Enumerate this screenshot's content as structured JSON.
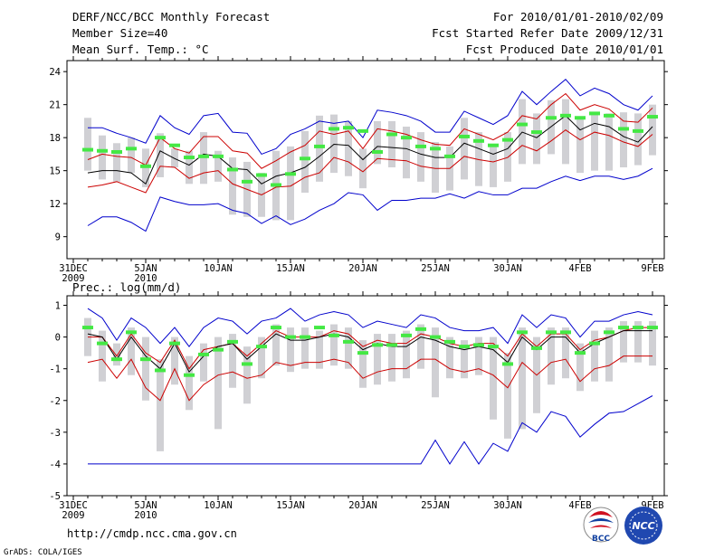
{
  "header": {
    "title": "DERF/NCC/BCC Monthly Forecast",
    "member_size": "Member Size=40",
    "variable": "Mean Surf. Temp.: °C",
    "period": "For 2010/01/01-2010/02/09",
    "started": "Fcst Started Refer Date 2009/12/31",
    "produced": "Fcst Produced Date 2010/01/01"
  },
  "footer": {
    "url": "http://cmdp.ncc.cma.gov.cn",
    "credit": "GrADS: COLA/IGES",
    "logo_bcc": "BCC",
    "logo_ncc": "NCC"
  },
  "colors": {
    "max_min": "#0000cc",
    "spread": "#cc0000",
    "mean": "#000000",
    "box": "#d0d0d4",
    "bar": "#44e844"
  },
  "x_ticks": [
    {
      "day": 0,
      "label": "31DEC",
      "sub": "2009"
    },
    {
      "day": 5,
      "label": "5JAN",
      "sub": "2010"
    },
    {
      "day": 10,
      "label": "10JAN",
      "sub": ""
    },
    {
      "day": 15,
      "label": "15JAN",
      "sub": ""
    },
    {
      "day": 20,
      "label": "20JAN",
      "sub": ""
    },
    {
      "day": 25,
      "label": "25JAN",
      "sub": ""
    },
    {
      "day": 30,
      "label": "30JAN",
      "sub": ""
    },
    {
      "day": 35,
      "label": "4FEB",
      "sub": ""
    },
    {
      "day": 40,
      "label": "9FEB",
      "sub": ""
    }
  ],
  "chart_data": [
    {
      "type": "line",
      "title": "Mean Surf. Temp.: °C",
      "ylim": [
        7,
        25
      ],
      "yticks": [
        9,
        12,
        15,
        18,
        21,
        24
      ],
      "x_days": [
        1,
        2,
        3,
        4,
        5,
        6,
        7,
        8,
        9,
        10,
        11,
        12,
        13,
        14,
        15,
        16,
        17,
        18,
        19,
        20,
        21,
        22,
        23,
        24,
        25,
        26,
        27,
        28,
        29,
        30,
        31,
        32,
        33,
        34,
        35,
        36,
        37,
        38,
        39,
        40
      ],
      "series": [
        {
          "name": "max",
          "values": [
            18.9,
            18.9,
            18.4,
            18.0,
            17.5,
            20.0,
            18.9,
            18.3,
            20.0,
            20.2,
            18.5,
            18.4,
            16.5,
            17.0,
            18.3,
            18.8,
            19.5,
            19.3,
            19.5,
            18.0,
            20.5,
            20.3,
            20.0,
            19.5,
            18.5,
            18.5,
            20.4,
            19.8,
            19.2,
            20.0,
            22.2,
            21.0,
            22.2,
            23.3,
            21.8,
            22.5,
            22.0,
            21.0,
            20.5,
            21.8
          ]
        },
        {
          "name": "upper",
          "values": [
            16.0,
            16.5,
            16.3,
            16.2,
            15.5,
            18.0,
            17.0,
            16.6,
            18.1,
            18.1,
            16.8,
            16.6,
            15.2,
            15.9,
            16.7,
            17.3,
            18.6,
            18.3,
            18.6,
            17.0,
            18.8,
            18.6,
            18.3,
            17.8,
            17.4,
            17.3,
            18.8,
            18.3,
            17.8,
            18.5,
            20.0,
            19.7,
            21.0,
            22.0,
            20.5,
            21.0,
            20.6,
            19.5,
            19.4,
            20.7
          ]
        },
        {
          "name": "mean",
          "values": [
            14.8,
            15.0,
            15.0,
            14.8,
            13.8,
            16.8,
            16.1,
            15.5,
            16.5,
            16.3,
            15.2,
            15.1,
            13.8,
            14.5,
            14.8,
            15.3,
            16.3,
            17.4,
            17.3,
            16.0,
            17.2,
            17.1,
            17.0,
            16.5,
            16.2,
            16.2,
            17.5,
            17.0,
            16.5,
            17.0,
            18.5,
            18.0,
            19.0,
            20.0,
            18.7,
            19.3,
            19.0,
            18.1,
            17.6,
            19.0
          ]
        },
        {
          "name": "lower",
          "values": [
            13.5,
            13.7,
            14.0,
            13.5,
            13.0,
            15.4,
            15.3,
            14.3,
            14.8,
            15.0,
            13.8,
            13.3,
            12.8,
            13.5,
            13.6,
            14.4,
            14.8,
            16.2,
            15.8,
            14.9,
            16.1,
            16.0,
            15.9,
            15.4,
            15.2,
            15.2,
            16.3,
            16.0,
            15.8,
            16.2,
            17.3,
            16.8,
            17.7,
            18.7,
            17.8,
            18.5,
            18.2,
            17.6,
            17.2,
            18.3
          ]
        },
        {
          "name": "min",
          "values": [
            10.0,
            10.8,
            10.8,
            10.3,
            9.5,
            12.6,
            12.2,
            11.9,
            11.9,
            12.0,
            11.4,
            11.1,
            10.2,
            10.9,
            10.1,
            10.6,
            11.4,
            12.0,
            13.0,
            12.8,
            11.4,
            12.3,
            12.3,
            12.5,
            12.5,
            12.9,
            12.5,
            13.1,
            12.8,
            12.8,
            13.4,
            13.4,
            14.0,
            14.5,
            14.1,
            14.5,
            14.5,
            14.2,
            14.5,
            15.2
          ]
        },
        {
          "name": "box_top",
          "values": [
            19.8,
            18.2,
            17.5,
            18.0,
            17.0,
            18.4,
            17.0,
            16.8,
            18.5,
            16.8,
            16.2,
            15.8,
            14.8,
            16.8,
            17.2,
            18.6,
            20.0,
            20.1,
            19.5,
            17.0,
            19.5,
            19.5,
            19.0,
            18.5,
            17.6,
            17.2,
            19.8,
            18.5,
            17.4,
            18.5,
            21.5,
            20.2,
            21.4,
            21.5,
            19.8,
            20.2,
            20.2,
            20.3,
            20.2,
            21.0
          ]
        },
        {
          "name": "box_bottom",
          "values": [
            15.0,
            14.2,
            14.0,
            14.8,
            13.5,
            14.4,
            15.3,
            13.8,
            13.8,
            14.0,
            11.0,
            10.8,
            10.8,
            10.5,
            10.5,
            13.0,
            14.0,
            14.8,
            14.5,
            13.4,
            15.6,
            15.3,
            14.3,
            14.0,
            13.0,
            13.2,
            14.2,
            13.6,
            13.5,
            14.0,
            15.6,
            15.6,
            16.5,
            15.6,
            14.8,
            15.0,
            15.0,
            15.3,
            15.5,
            16.4
          ]
        },
        {
          "name": "median",
          "values": [
            16.9,
            16.8,
            16.7,
            17.0,
            15.4,
            18.0,
            17.3,
            16.2,
            16.3,
            16.3,
            15.1,
            14.0,
            14.6,
            13.7,
            14.7,
            16.1,
            17.2,
            18.8,
            18.9,
            18.6,
            16.7,
            18.3,
            18.0,
            17.2,
            17.0,
            16.3,
            18.1,
            17.7,
            17.3,
            17.8,
            19.2,
            18.5,
            19.8,
            20.0,
            19.8,
            20.2,
            20.0,
            18.8,
            18.6,
            19.9
          ]
        }
      ]
    },
    {
      "type": "line",
      "title": "Prec.: log(mm/d)",
      "ylim": [
        -5,
        1.3
      ],
      "yticks": [
        -5,
        -4,
        -3,
        -2,
        -1,
        0,
        1
      ],
      "x_days": [
        1,
        2,
        3,
        4,
        5,
        6,
        7,
        8,
        9,
        10,
        11,
        12,
        13,
        14,
        15,
        16,
        17,
        18,
        19,
        20,
        21,
        22,
        23,
        24,
        25,
        26,
        27,
        28,
        29,
        30,
        31,
        32,
        33,
        34,
        35,
        36,
        37,
        38,
        39,
        40
      ],
      "series": [
        {
          "name": "max",
          "values": [
            0.9,
            0.6,
            -0.1,
            0.6,
            0.3,
            -0.2,
            0.3,
            -0.3,
            0.3,
            0.6,
            0.5,
            0.1,
            0.5,
            0.6,
            0.9,
            0.5,
            0.7,
            0.8,
            0.7,
            0.3,
            0.5,
            0.4,
            0.3,
            0.7,
            0.6,
            0.3,
            0.2,
            0.2,
            0.3,
            -0.2,
            0.7,
            0.3,
            0.7,
            0.6,
            0.0,
            0.5,
            0.5,
            0.7,
            0.8,
            0.7
          ]
        },
        {
          "name": "upper",
          "values": [
            0.0,
            0.0,
            -0.6,
            0.1,
            -0.5,
            -0.8,
            -0.1,
            -1.0,
            -0.4,
            -0.3,
            -0.2,
            -0.6,
            -0.2,
            0.2,
            0.0,
            0.0,
            0.0,
            0.2,
            0.1,
            -0.3,
            -0.1,
            -0.2,
            -0.2,
            0.1,
            0.0,
            -0.2,
            -0.3,
            -0.2,
            -0.2,
            -0.6,
            0.1,
            -0.3,
            0.1,
            0.1,
            -0.4,
            -0.1,
            0.0,
            0.2,
            0.3,
            0.3
          ]
        },
        {
          "name": "mean",
          "values": [
            0.1,
            0.0,
            -0.7,
            0.0,
            -0.6,
            -1.0,
            -0.2,
            -1.1,
            -0.6,
            -0.3,
            -0.2,
            -0.7,
            -0.3,
            0.1,
            -0.1,
            -0.1,
            0.0,
            0.1,
            0.0,
            -0.4,
            -0.2,
            -0.3,
            -0.3,
            0.0,
            -0.1,
            -0.3,
            -0.4,
            -0.3,
            -0.4,
            -0.8,
            0.0,
            -0.4,
            0.0,
            0.0,
            -0.5,
            -0.2,
            0.0,
            0.2,
            0.2,
            0.2
          ]
        },
        {
          "name": "lower",
          "values": [
            -0.8,
            -0.7,
            -1.3,
            -0.7,
            -1.6,
            -2.0,
            -1.0,
            -2.0,
            -1.5,
            -1.2,
            -1.1,
            -1.3,
            -1.2,
            -0.8,
            -0.9,
            -0.8,
            -0.8,
            -0.7,
            -0.8,
            -1.3,
            -1.1,
            -1.0,
            -1.0,
            -0.7,
            -0.7,
            -1.0,
            -1.1,
            -1.0,
            -1.2,
            -1.6,
            -0.8,
            -1.2,
            -0.8,
            -0.7,
            -1.4,
            -1.0,
            -0.9,
            -0.6,
            -0.6,
            -0.6
          ]
        },
        {
          "name": "min",
          "values": [
            -4,
            -4,
            -4,
            -4,
            -4,
            -4,
            -4,
            -4,
            -4,
            -4,
            -4,
            -4,
            -4,
            -4,
            -4,
            -4,
            -4,
            -4,
            -4,
            -4,
            -4,
            -4,
            -4,
            -4,
            -3.25,
            -4.0,
            -3.3,
            -4.0,
            -3.35,
            -3.6,
            -2.7,
            -3.0,
            -2.35,
            -2.5,
            -3.15,
            -2.75,
            -2.4,
            -2.35,
            -2.1,
            -1.85
          ]
        },
        {
          "name": "box_top",
          "values": [
            0.6,
            0.2,
            -0.2,
            0.3,
            0.0,
            -0.7,
            0.0,
            -0.6,
            -0.2,
            0.0,
            0.1,
            -0.3,
            0.0,
            0.4,
            0.3,
            0.3,
            0.2,
            0.4,
            0.3,
            -0.1,
            0.1,
            0.1,
            0.2,
            0.4,
            0.3,
            0.0,
            -0.1,
            0.0,
            0.0,
            -0.5,
            0.3,
            0.0,
            0.3,
            0.3,
            -0.2,
            0.2,
            0.3,
            0.5,
            0.5,
            0.5
          ]
        },
        {
          "name": "box_bottom",
          "values": [
            -0.6,
            -1.4,
            -0.9,
            -1.2,
            -2.0,
            -3.6,
            -1.5,
            -2.3,
            -1.4,
            -2.9,
            -1.6,
            -2.1,
            -1.3,
            -0.9,
            -1.1,
            -1.0,
            -1.0,
            -0.9,
            -1.0,
            -1.6,
            -1.5,
            -1.4,
            -1.3,
            -1.0,
            -1.9,
            -1.3,
            -1.3,
            -1.2,
            -2.6,
            -3.2,
            -2.9,
            -2.4,
            -1.5,
            -1.3,
            -1.7,
            -1.4,
            -1.4,
            -0.8,
            -0.8,
            -0.9
          ]
        },
        {
          "name": "median",
          "values": [
            0.3,
            -0.2,
            -0.7,
            0.15,
            -0.7,
            -1.05,
            -0.2,
            -1.2,
            -0.55,
            -0.4,
            -0.15,
            -0.85,
            -0.3,
            0.3,
            0.0,
            0.0,
            0.3,
            0.05,
            -0.15,
            -0.5,
            -0.25,
            -0.25,
            0.05,
            0.25,
            0.0,
            -0.15,
            -0.3,
            -0.25,
            -0.3,
            -0.85,
            0.15,
            -0.35,
            0.15,
            0.15,
            -0.5,
            -0.2,
            0.15,
            0.3,
            0.3,
            0.3
          ]
        }
      ]
    }
  ]
}
